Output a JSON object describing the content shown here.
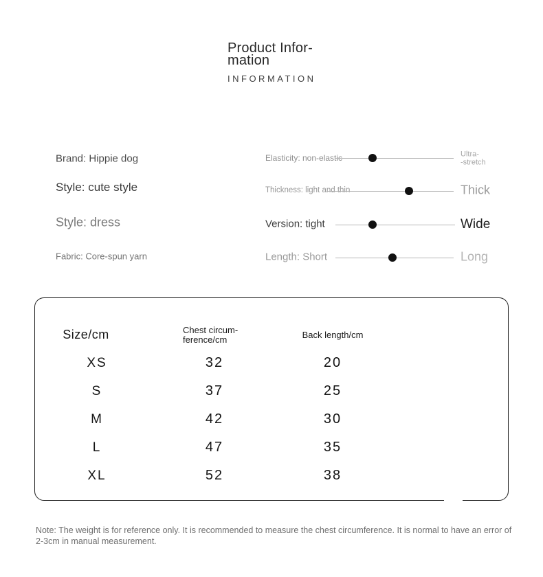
{
  "header": {
    "title_line1": "Product Infor-",
    "title_line2": "mation",
    "subtitle": "INFORMATION"
  },
  "specs": {
    "brand": "Brand: Hippie dog",
    "style_primary": "Style: cute style",
    "style_secondary": "Style: dress",
    "fabric": "Fabric: Core-spun yarn"
  },
  "sliders": [
    {
      "label": "Elasticity: non-elastic",
      "max_line1": "Ultra-",
      "max_line2": "-stretch",
      "value_percent": 32
    },
    {
      "label": "Thickness: light and thin",
      "max_label": "Thick",
      "value_percent": 65
    },
    {
      "label": "Version: tight",
      "max_label": "Wide",
      "value_percent": 31
    },
    {
      "label": "Length: Short",
      "max_label": "Long",
      "value_percent": 48
    }
  ],
  "size_table": {
    "headers": {
      "size": "Size/cm",
      "chest_line1": "Chest circum-",
      "chest_line2": "ference/cm",
      "back": "Back length/cm"
    },
    "rows": [
      {
        "size": "XS",
        "chest": "32",
        "back": "20"
      },
      {
        "size": "S",
        "chest": "37",
        "back": "25"
      },
      {
        "size": "M",
        "chest": "42",
        "back": "30"
      },
      {
        "size": "L",
        "chest": "47",
        "back": "35"
      },
      {
        "size": "XL",
        "chest": "52",
        "back": "38"
      }
    ]
  },
  "note": "Note: The weight is for reference only. It is recommended to measure the chest circumference. It is normal to have an error of 2-3cm in manual measurement.",
  "colors": {
    "slider_dot": "#111111",
    "slider_track": "#b5b5b5",
    "table_border": "#1f1f1f"
  }
}
